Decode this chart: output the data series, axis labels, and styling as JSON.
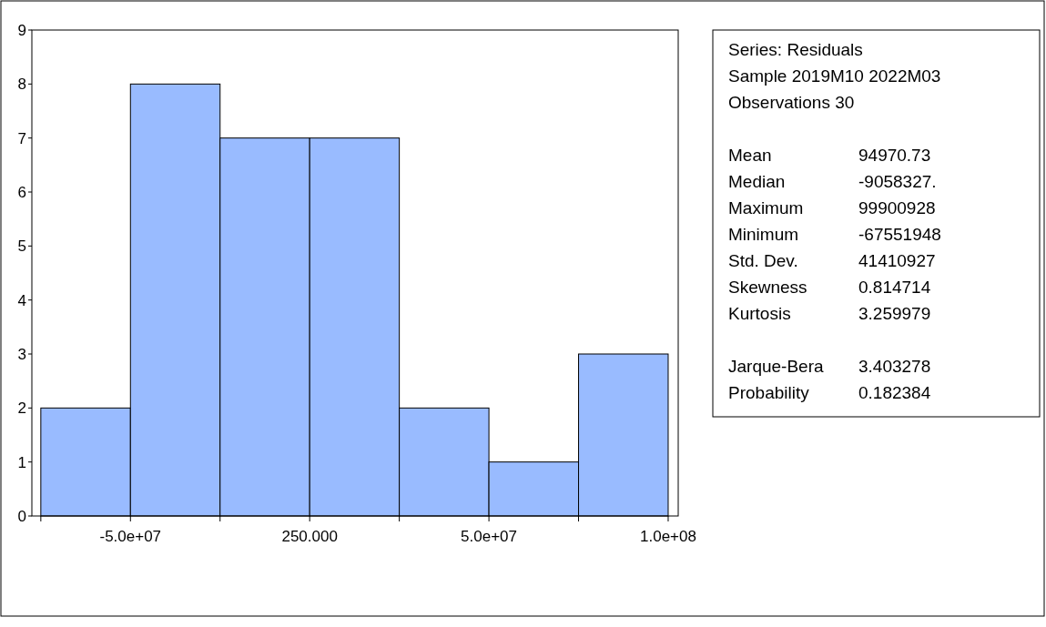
{
  "chart_data": {
    "type": "histogram",
    "bins": [
      -75000000,
      -50000000,
      -25000000,
      0,
      25000000,
      50000000,
      75000000,
      100000000
    ],
    "values": [
      2,
      8,
      7,
      7,
      2,
      1,
      3
    ],
    "color": "#99bbff",
    "xlim": [
      -77500000,
      102800000
    ],
    "xticks": [
      {
        "value": -75000000,
        "label": null
      },
      {
        "value": -50000000,
        "label": "-5.0e+07"
      },
      {
        "value": -25000000,
        "label": null
      },
      {
        "value": 250,
        "label": "250.000"
      },
      {
        "value": 25000000,
        "label": null
      },
      {
        "value": 50000000,
        "label": "5.0e+07"
      },
      {
        "value": 75000000,
        "label": null
      },
      {
        "value": 100000000,
        "label": "1.0e+08"
      }
    ],
    "ylim": [
      0,
      9
    ],
    "yticks": [
      0,
      1,
      2,
      3,
      4,
      5,
      6,
      7,
      8,
      9
    ],
    "grid": false,
    "annotations": [
      "Series: Residuals",
      "Sample 2019M10 2022M03",
      "Observations 30",
      "Mean",
      "94970.73",
      "Median",
      "-9058327.",
      "Maximum",
      "99900928",
      "Minimum",
      "-67551948",
      "Std. Dev.",
      "41410927",
      "Skewness",
      "0.814714",
      "Kurtosis",
      "3.259979",
      "Jarque-Bera",
      "3.403278",
      "Probability",
      "0.182384"
    ]
  }
}
